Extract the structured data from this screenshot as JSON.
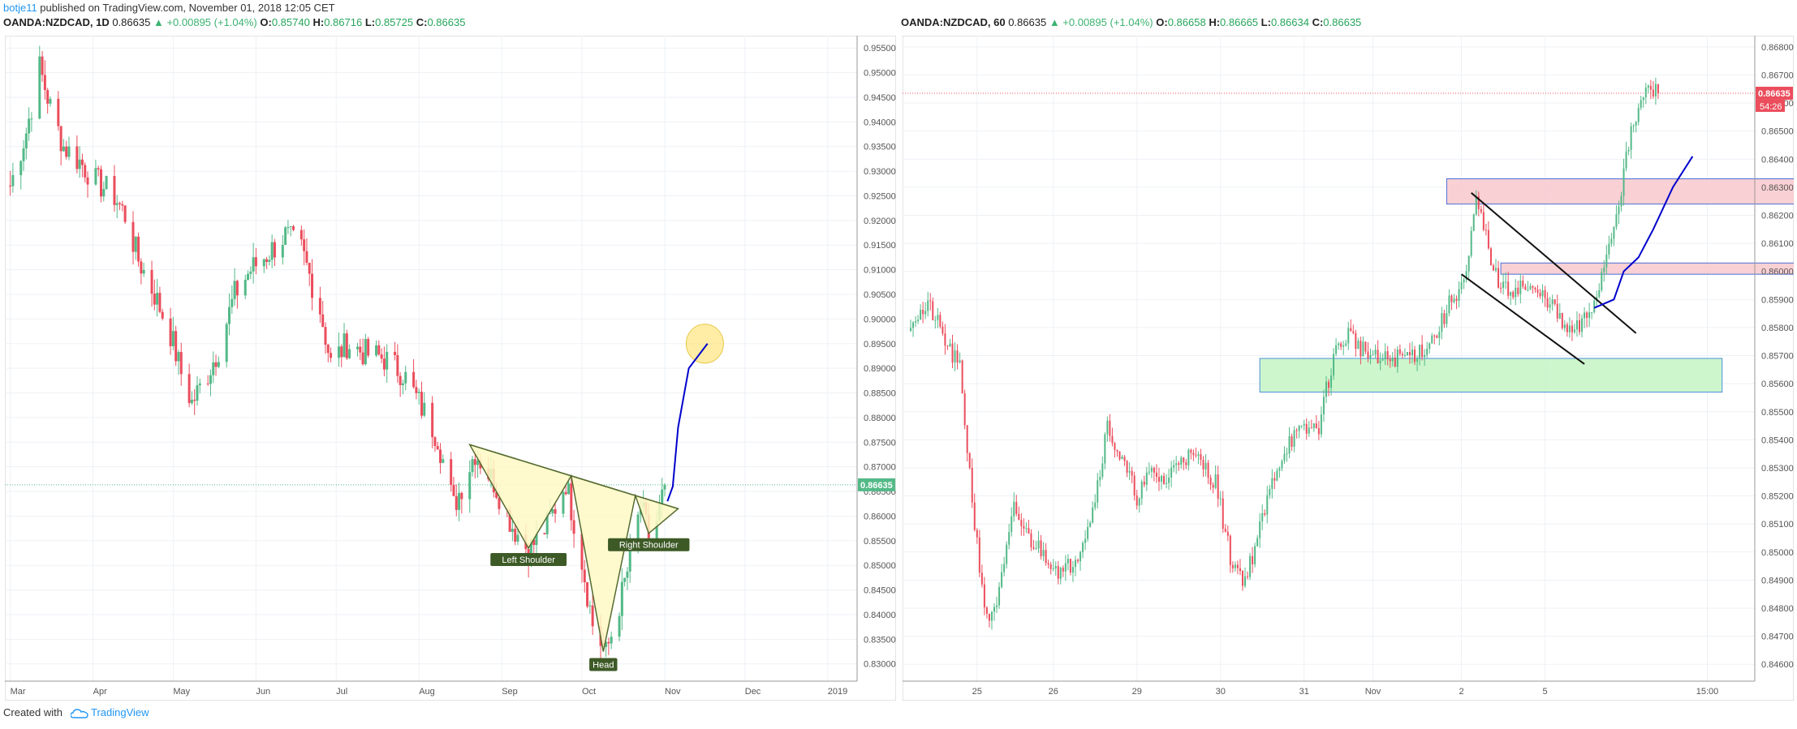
{
  "header": {
    "author": "botje11",
    "published_text": " published on TradingView.com, November 01, 2018 12:05 CET"
  },
  "footer": {
    "created_with": "Created with",
    "brand": "TradingView",
    "logo_icon": "tradingview-cloud-icon"
  },
  "colors": {
    "up": "#53b987",
    "down": "#eb4d5c",
    "grid": "#eef1f5",
    "axis": "#555555",
    "price_label_left": "#53b987",
    "price_label_right": "#eb4d5c",
    "projection": "#0000cc",
    "pattern_fill": "#fff9c4",
    "pattern_stroke": "#556b2f",
    "label_bg": "#3d5a26",
    "supply_zone": "#f8c8cc",
    "demand_zone": "#c4f5c4",
    "target_circle": "#ffe680"
  },
  "left_panel": {
    "symbol": "OANDA:NZDCAD, 1D",
    "last": "0.86635",
    "change": "▲ +0.00895 (+1.04%)",
    "open_label": "O:",
    "open": "0.85740",
    "high_label": "H:",
    "high": "0.86716",
    "low_label": "L:",
    "low": "0.85725",
    "close_label": "C:",
    "close": "0.86635",
    "price_tag": "0.86635",
    "pattern_labels": {
      "left_shoulder": "Left Shoulder",
      "head": "Head",
      "right_shoulder": "Right Shoulder"
    }
  },
  "right_panel": {
    "symbol": "OANDA:NZDCAD, 60",
    "last": "0.86635",
    "change": "▲ +0.00895 (+1.04%)",
    "open_label": "O:",
    "open": "0.86658",
    "high_label": "H:",
    "high": "0.86665",
    "low_label": "L:",
    "low": "0.86634",
    "close_label": "C:",
    "close": "0.86635",
    "price_tag": "0.86635",
    "countdown": "54:26"
  },
  "chart_data": [
    {
      "type": "candlestick",
      "symbol": "OANDA:NZDCAD",
      "interval": "1D",
      "ylim": [
        0.8265,
        0.9575
      ],
      "y_ticks": [
        "0.95500",
        "0.95000",
        "0.94500",
        "0.94000",
        "0.93500",
        "0.93000",
        "0.92500",
        "0.92000",
        "0.91500",
        "0.91000",
        "0.90500",
        "0.90000",
        "0.89500",
        "0.89000",
        "0.88500",
        "0.88000",
        "0.87500",
        "0.87000",
        "0.86500",
        "0.86000",
        "0.85500",
        "0.85000",
        "0.84500",
        "0.84000",
        "0.83500",
        "0.83000"
      ],
      "y_tick_values": [
        0.955,
        0.95,
        0.945,
        0.94,
        0.935,
        0.93,
        0.925,
        0.92,
        0.915,
        0.91,
        0.905,
        0.9,
        0.895,
        0.89,
        0.885,
        0.88,
        0.875,
        0.87,
        0.865,
        0.86,
        0.855,
        0.85,
        0.845,
        0.84,
        0.835,
        0.83
      ],
      "x_ticks": [
        "Mar",
        "Apr",
        "May",
        "Jun",
        "Jul",
        "Aug",
        "Sep",
        "Oct",
        "Nov",
        "Dec",
        "2019"
      ],
      "close_path": [
        [
          "2018-03-01",
          0.927
        ],
        [
          "2018-03-07",
          0.938
        ],
        [
          "2018-03-12",
          0.951
        ],
        [
          "2018-03-16",
          0.943
        ],
        [
          "2018-03-21",
          0.935
        ],
        [
          "2018-03-27",
          0.932
        ],
        [
          "2018-04-02",
          0.928
        ],
        [
          "2018-04-09",
          0.925
        ],
        [
          "2018-04-13",
          0.921
        ],
        [
          "2018-04-18",
          0.912
        ],
        [
          "2018-04-24",
          0.905
        ],
        [
          "2018-04-30",
          0.897
        ],
        [
          "2018-05-04",
          0.889
        ],
        [
          "2018-05-08",
          0.883
        ],
        [
          "2018-05-14",
          0.889
        ],
        [
          "2018-05-18",
          0.894
        ],
        [
          "2018-05-24",
          0.905
        ],
        [
          "2018-05-30",
          0.91
        ],
        [
          "2018-06-05",
          0.913
        ],
        [
          "2018-06-12",
          0.917
        ],
        [
          "2018-06-18",
          0.914
        ],
        [
          "2018-06-25",
          0.902
        ],
        [
          "2018-06-29",
          0.891
        ],
        [
          "2018-07-05",
          0.895
        ],
        [
          "2018-07-12",
          0.893
        ],
        [
          "2018-07-19",
          0.892
        ],
        [
          "2018-07-26",
          0.889
        ],
        [
          "2018-08-01",
          0.883
        ],
        [
          "2018-08-08",
          0.876
        ],
        [
          "2018-08-14",
          0.862
        ],
        [
          "2018-08-22",
          0.873
        ],
        [
          "2018-08-29",
          0.867
        ],
        [
          "2018-09-05",
          0.858
        ],
        [
          "2018-09-11",
          0.853
        ],
        [
          "2018-09-18",
          0.858
        ],
        [
          "2018-09-25",
          0.867
        ],
        [
          "2018-10-01",
          0.851
        ],
        [
          "2018-10-05",
          0.838
        ],
        [
          "2018-10-10",
          0.832
        ],
        [
          "2018-10-15",
          0.842
        ],
        [
          "2018-10-19",
          0.851
        ],
        [
          "2018-10-23",
          0.862
        ],
        [
          "2018-10-26",
          0.856
        ],
        [
          "2018-10-29",
          0.859
        ],
        [
          "2018-11-01",
          0.866
        ]
      ],
      "last_price": 0.86635,
      "annotations": {
        "head_and_shoulders": {
          "left_shoulder": [
            "2018-09-11",
            0.8535
          ],
          "head": [
            "2018-10-09",
            0.8325
          ],
          "right_shoulder": [
            "2018-10-26",
            0.8565
          ],
          "neckline": [
            [
              "2018-08-20",
              0.8745
            ],
            [
              "2018-11-06",
              0.8615
            ]
          ]
        },
        "projection_path": [
          [
            "2018-11-02",
            0.863
          ],
          [
            "2018-11-04",
            0.866
          ],
          [
            "2018-11-06",
            0.878
          ],
          [
            "2018-11-10",
            0.89
          ],
          [
            "2018-11-17",
            0.895
          ]
        ],
        "target_circle": [
          "2018-11-16",
          0.895
        ]
      }
    },
    {
      "type": "candlestick",
      "symbol": "OANDA:NZDCAD",
      "interval": "60",
      "ylim": [
        0.8454,
        0.8684
      ],
      "y_ticks": [
        "0.86800",
        "0.86700",
        "0.86600",
        "0.86500",
        "0.86400",
        "0.86300",
        "0.86200",
        "0.86100",
        "0.86000",
        "0.85900",
        "0.85800",
        "0.85700",
        "0.85600",
        "0.85500",
        "0.85400",
        "0.85300",
        "0.85200",
        "0.85100",
        "0.85000",
        "0.84900",
        "0.84800",
        "0.84700",
        "0.84600"
      ],
      "y_tick_values": [
        0.868,
        0.867,
        0.866,
        0.865,
        0.864,
        0.863,
        0.862,
        0.861,
        0.86,
        0.859,
        0.858,
        0.857,
        0.856,
        0.855,
        0.854,
        0.853,
        0.852,
        0.851,
        0.85,
        0.849,
        0.848,
        0.847,
        0.846
      ],
      "x_ticks": [
        "25",
        "26",
        "29",
        "30",
        "31",
        "Nov",
        "2",
        "5",
        "15:00"
      ],
      "close_path": [
        [
          0,
          0.8583
        ],
        [
          8,
          0.8587
        ],
        [
          14,
          0.8575
        ],
        [
          20,
          0.8565
        ],
        [
          26,
          0.851
        ],
        [
          31,
          0.8475
        ],
        [
          36,
          0.8485
        ],
        [
          42,
          0.8515
        ],
        [
          48,
          0.8505
        ],
        [
          56,
          0.8498
        ],
        [
          62,
          0.8492
        ],
        [
          68,
          0.85
        ],
        [
          74,
          0.8515
        ],
        [
          80,
          0.8545
        ],
        [
          86,
          0.8532
        ],
        [
          92,
          0.852
        ],
        [
          98,
          0.8528
        ],
        [
          104,
          0.8525
        ],
        [
          110,
          0.8535
        ],
        [
          118,
          0.8532
        ],
        [
          124,
          0.8525
        ],
        [
          130,
          0.8498
        ],
        [
          136,
          0.849
        ],
        [
          142,
          0.8508
        ],
        [
          148,
          0.8528
        ],
        [
          154,
          0.854
        ],
        [
          160,
          0.8543
        ],
        [
          166,
          0.8545
        ],
        [
          172,
          0.857
        ],
        [
          178,
          0.8578
        ],
        [
          184,
          0.8572
        ],
        [
          190,
          0.8568
        ],
        [
          196,
          0.8569
        ],
        [
          202,
          0.857
        ],
        [
          208,
          0.8572
        ],
        [
          214,
          0.8578
        ],
        [
          220,
          0.859
        ],
        [
          226,
          0.8598
        ],
        [
          230,
          0.8625
        ],
        [
          234,
          0.8612
        ],
        [
          238,
          0.8598
        ],
        [
          242,
          0.8593
        ],
        [
          248,
          0.8595
        ],
        [
          254,
          0.8592
        ],
        [
          260,
          0.859
        ],
        [
          264,
          0.8582
        ],
        [
          268,
          0.8578
        ],
        [
          272,
          0.858
        ],
        [
          276,
          0.8585
        ],
        [
          280,
          0.8595
        ],
        [
          284,
          0.861
        ],
        [
          288,
          0.8625
        ],
        [
          292,
          0.8645
        ],
        [
          296,
          0.8658
        ],
        [
          300,
          0.8665
        ],
        [
          304,
          0.86635
        ]
      ],
      "last_price": 0.86635,
      "annotations": {
        "supply_zone_upper": [
          0.8624,
          0.8633
        ],
        "supply_zone_lower": [
          0.8599,
          0.8603
        ],
        "demand_zone": [
          0.8557,
          0.8569
        ],
        "channel_upper": [
          [
            228,
            0.8628
          ],
          [
            295,
            0.8578
          ]
        ],
        "channel_lower": [
          [
            224,
            0.8599
          ],
          [
            274,
            0.8567
          ]
        ],
        "projection_path": [
          [
            278,
            0.8587
          ],
          [
            286,
            0.859
          ],
          [
            290,
            0.86
          ],
          [
            296,
            0.8605
          ],
          [
            302,
            0.8615
          ],
          [
            310,
            0.863
          ],
          [
            318,
            0.8641
          ]
        ]
      }
    }
  ]
}
